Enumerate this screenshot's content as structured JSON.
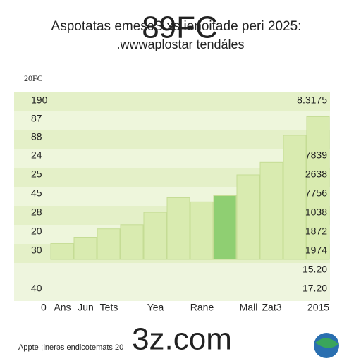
{
  "chart_data": {
    "type": "bar",
    "title": "Aspotatas emescS xs ienoitade peri 2025:",
    "title_overlay": "89FC",
    "subtitle": ".wwwaplostar tendáles",
    "corner_label": "20FC",
    "origin_label": "0",
    "categories": [
      "Ans",
      "Jun",
      "Tets",
      null,
      "Yea",
      null,
      "Rane",
      null,
      "Mall",
      "Zat3",
      null,
      "2015"
    ],
    "values": [
      27,
      30,
      34,
      36,
      42,
      49,
      47,
      50,
      60,
      66,
      79,
      88
    ],
    "colors": [
      "#d9ebb0",
      "#d9ebb0",
      "#d9ebb0",
      "#d9ebb0",
      "#d9ebb0",
      "#d9ebb0",
      "#d9ebb0",
      "#8fcf72",
      "#d9ebb0",
      "#d9ebb0",
      "#d9ebb0",
      "#d9ebb0"
    ],
    "ylim": [
      0,
      100
    ],
    "left_labels": [
      "190",
      "87",
      "88",
      "24",
      "25",
      "45",
      "28",
      "20",
      "30",
      "40"
    ],
    "right_labels": [
      "8.3175",
      "7839",
      "2638",
      "7756",
      "1038",
      "1872",
      "1974",
      "15.20",
      "17.20"
    ],
    "footer": "Appte ¡inerəs endicotemats 20",
    "watermark": "3z.com"
  }
}
